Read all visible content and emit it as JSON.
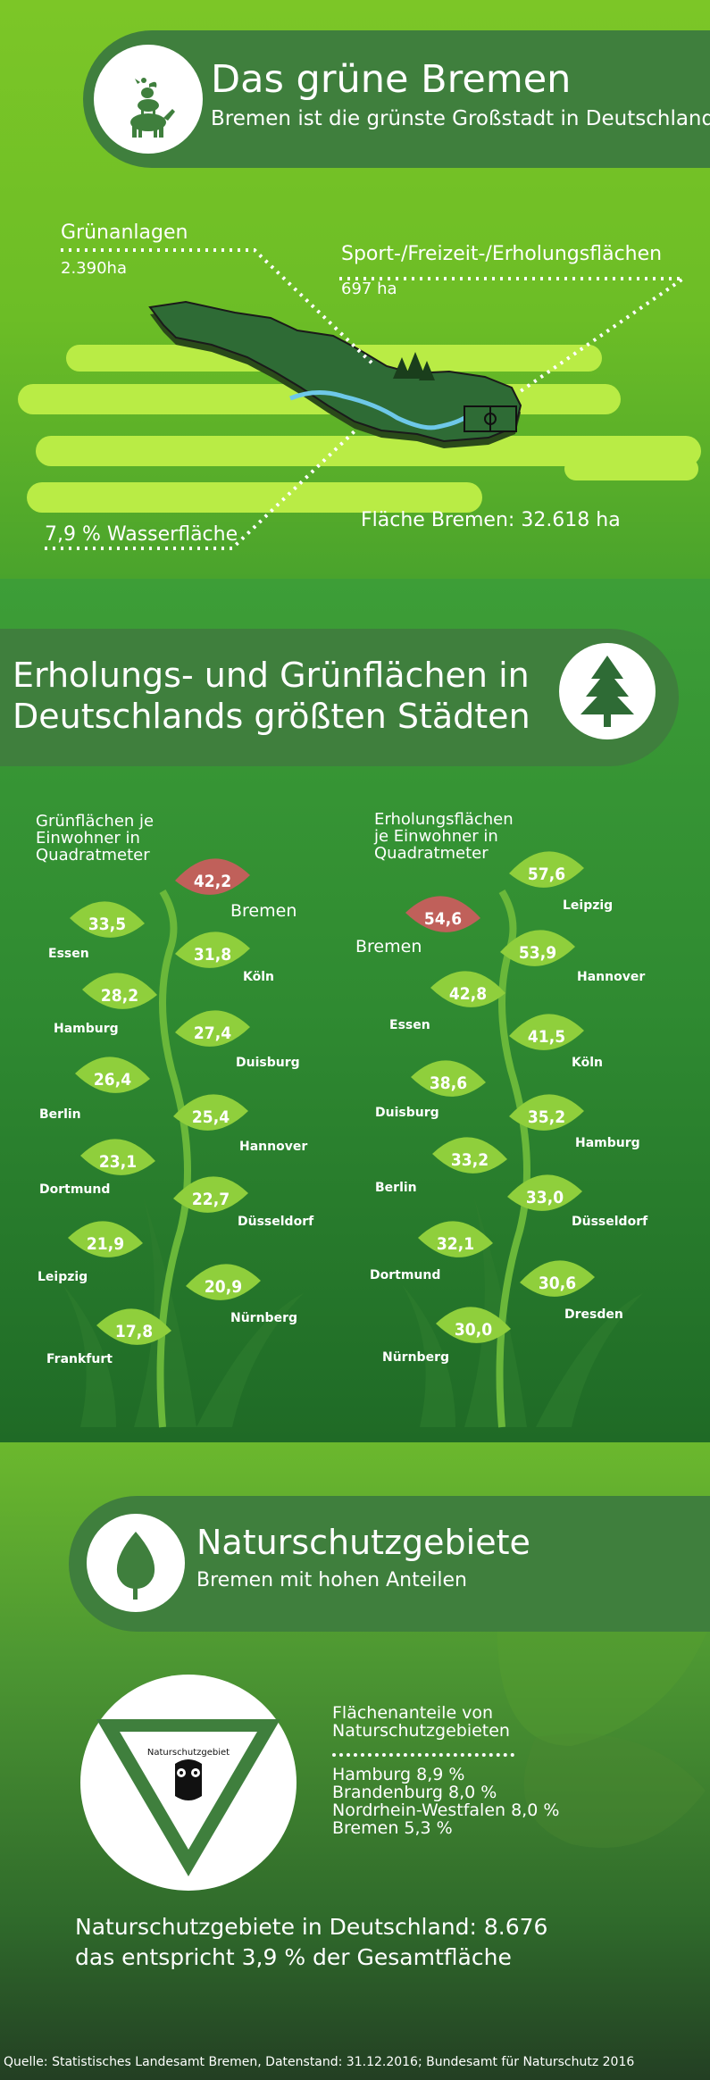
{
  "header": {
    "title": "Das grüne Bremen",
    "subtitle": "Bremen ist die grünste Großstadt in Deutschland",
    "icon": "bremen-town-musicians-icon"
  },
  "map": {
    "gruenanlagen_label": "Grünanlagen",
    "gruenanlagen_value": "2.390ha",
    "sport_label": "Sport-/Freizeit-/Erholungsflächen",
    "sport_value": "697 ha",
    "wasser_label": "7,9 % Wasserfläche",
    "flaeche_label": "Fläche Bremen: 32.618 ha"
  },
  "section2": {
    "title_line1": "Erholungs- und Grünflächen in",
    "title_line2": "Deutschlands größten Städten",
    "icon": "pine-tree-icon"
  },
  "chart_data": [
    {
      "type": "bar",
      "title": "Grünflächen je Einwohner in Quadratmeter",
      "title_lines": [
        "Grünflächen je",
        "Einwohner in",
        "Quadratmeter"
      ],
      "categories": [
        "Bremen",
        "Essen",
        "Köln",
        "Hamburg",
        "Duisburg",
        "Berlin",
        "Hannover",
        "Dortmund",
        "Düsseldorf",
        "Leipzig",
        "Nürnberg",
        "Frankfurt"
      ],
      "values": [
        "42,2",
        "33,5",
        "31,8",
        "28,2",
        "27,4",
        "26,4",
        "25,4",
        "23,1",
        "22,7",
        "21,9",
        "20,9",
        "17,8"
      ]
    },
    {
      "type": "bar",
      "title": "Erholungsflächen je Einwohner in Quadratmeter",
      "title_lines": [
        "Erholungsflächen",
        "je Einwohner in",
        "Quadratmeter"
      ],
      "categories": [
        "Leipzig",
        "Bremen",
        "Hannover",
        "Essen",
        "Köln",
        "Duisburg",
        "Hamburg",
        "Berlin",
        "Düsseldorf",
        "Dortmund",
        "Dresden",
        "Nürnberg"
      ],
      "values": [
        "57,6",
        "54,6",
        "53,9",
        "42,8",
        "41,5",
        "38,6",
        "35,2",
        "33,2",
        "33,0",
        "32,1",
        "30,6",
        "30,0"
      ]
    }
  ],
  "section3": {
    "title": "Naturschutzgebiete",
    "subtitle": "Bremen mit hohen Anteilen",
    "icon": "leaf-icon",
    "sign_text": "Naturschutzgebiet",
    "sign_icon": "owl-icon",
    "shares_title_line1": "Flächenanteile von",
    "shares_title_line2": "Naturschutzgebieten",
    "shares": [
      "Hamburg 8,9 %",
      "Brandenburg 8,0 %",
      "Nordrhein-Westfalen 8,0 %",
      "Bremen 5,3 %"
    ],
    "total_line1": "Naturschutzgebiete in Deutschland:  8.676",
    "total_line2": "das entspricht 3,9 % der Gesamtfläche"
  },
  "footer": {
    "source": "Quelle: Statistisches Landesamt Bremen, Datenstand: 31.12.2016; Bundesamt für Naturschutz 2016"
  },
  "colors": {
    "banner": "#3f7f3d",
    "leaf_green": "#8fcf3c",
    "leaf_highlight": "#c0605a",
    "light_lime": "#b9ec45"
  }
}
